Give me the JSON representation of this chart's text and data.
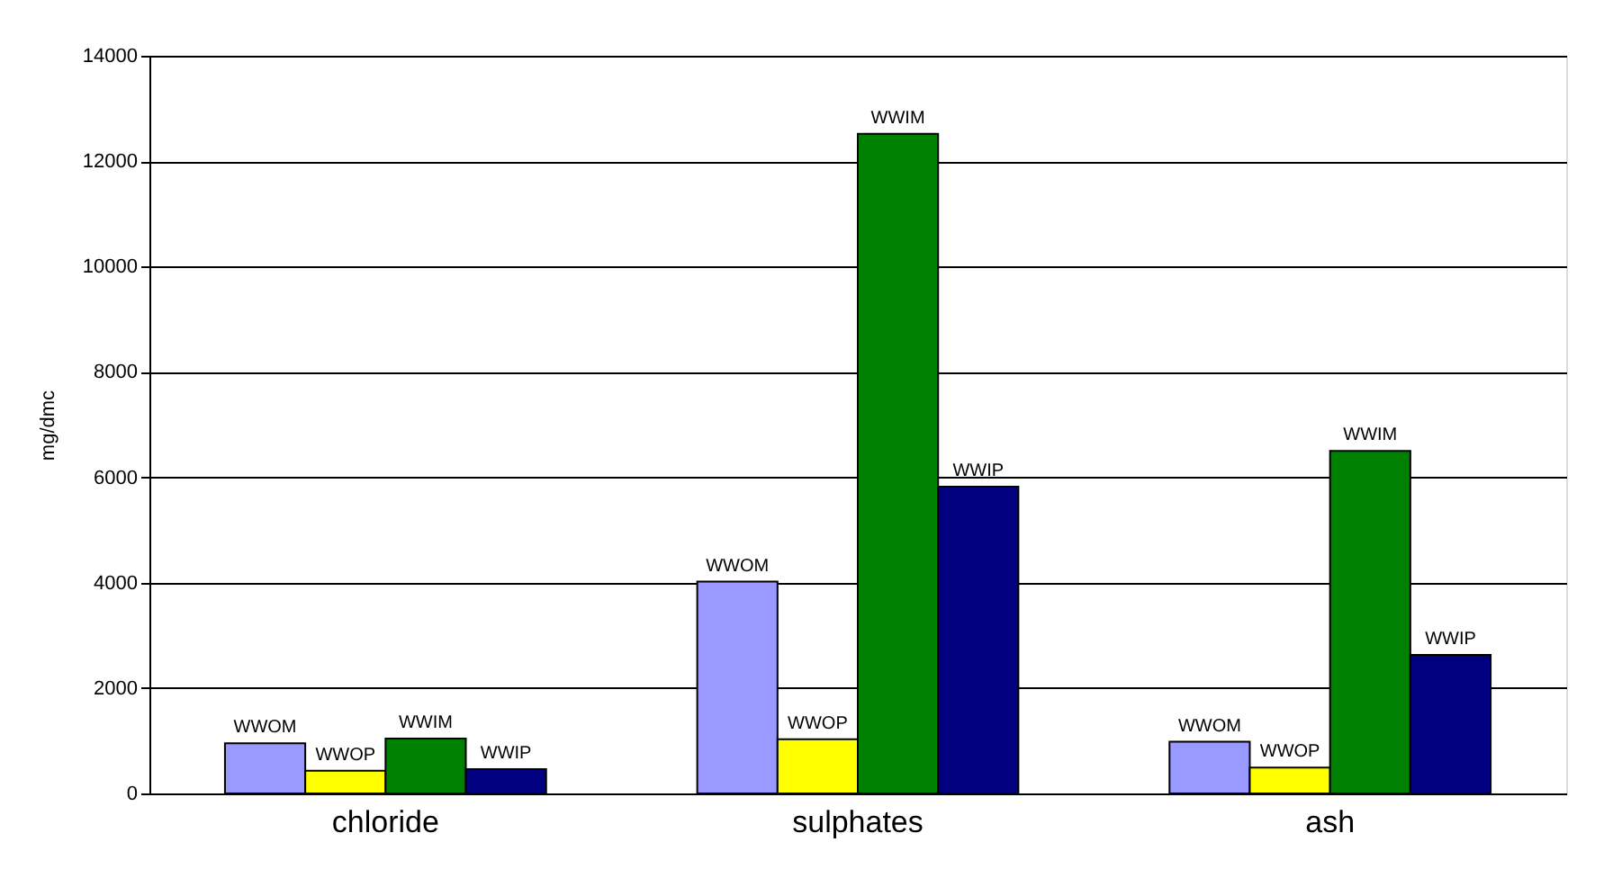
{
  "chart_data": {
    "type": "bar",
    "ylabel": "mg/dmc",
    "categories": [
      "chloride",
      "sulphates",
      "ash"
    ],
    "series": [
      {
        "name": "WWOM",
        "color": "#9999ff",
        "values": [
          950,
          4020,
          980
        ]
      },
      {
        "name": "WWOP",
        "color": "#ffff00",
        "values": [
          430,
          1030,
          490
        ]
      },
      {
        "name": "WWIM",
        "color": "#008000",
        "values": [
          1040,
          12520,
          6500
        ]
      },
      {
        "name": "WWIP",
        "color": "#000080",
        "values": [
          460,
          5820,
          2630
        ]
      }
    ],
    "ylim": [
      0,
      14000
    ],
    "yticks": [
      0,
      2000,
      4000,
      6000,
      8000,
      10000,
      12000,
      14000
    ],
    "grid": "y",
    "legend": false
  }
}
